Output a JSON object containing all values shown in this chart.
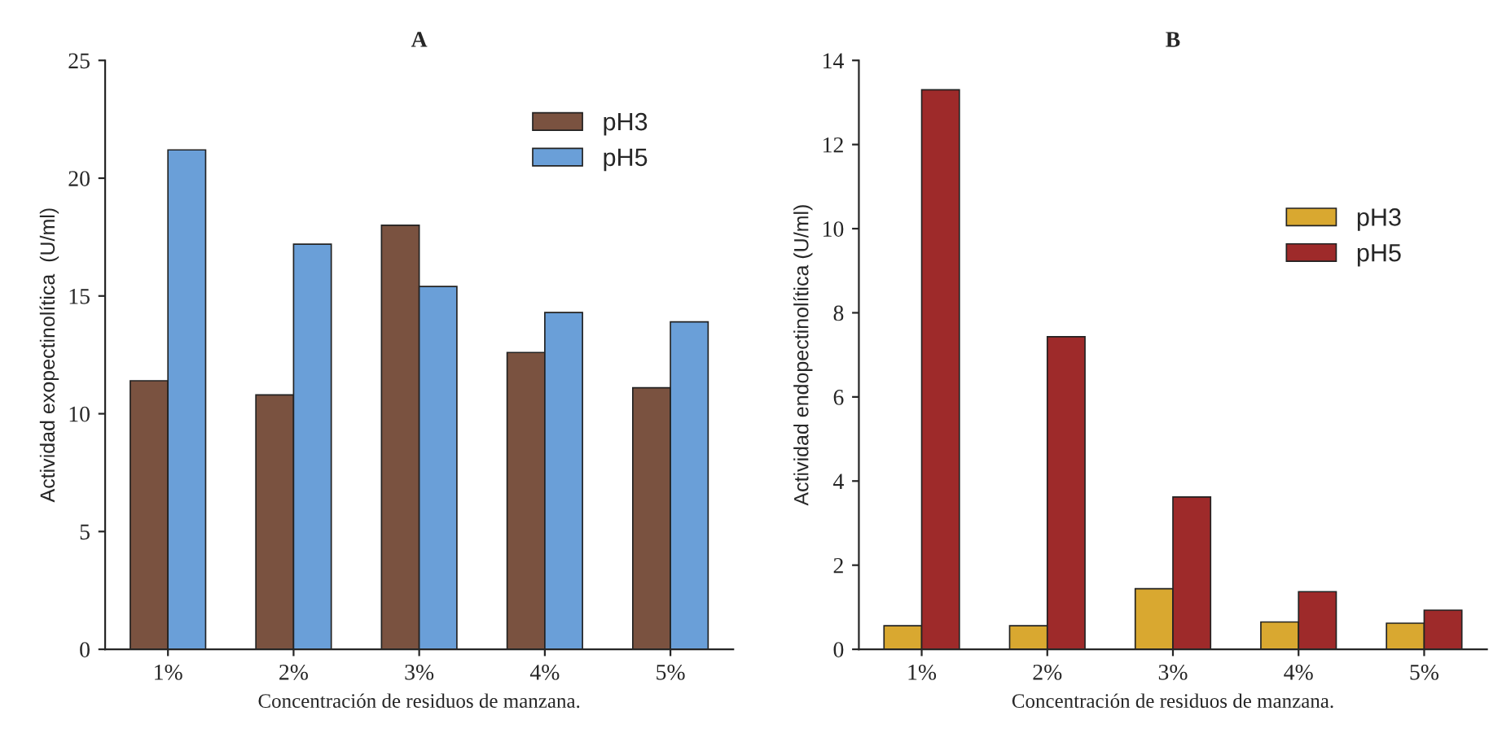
{
  "chart_data": [
    {
      "type": "bar",
      "title": "A",
      "xlabel": "Concentración de residuos de manzana.",
      "ylabel": "Actividad exopectinolítica  (U/ml)",
      "categories": [
        "1%",
        "2%",
        "3%",
        "4%",
        "5%"
      ],
      "series": [
        {
          "name": "pH3",
          "color": "#7a5240",
          "values": [
            11.4,
            10.8,
            18.0,
            12.6,
            11.1
          ]
        },
        {
          "name": "pH5",
          "color": "#6a9fd8",
          "values": [
            21.2,
            17.2,
            15.4,
            14.3,
            13.9
          ]
        }
      ],
      "ylim": [
        0,
        25
      ],
      "yticks": [
        0,
        5,
        10,
        15,
        20,
        25
      ],
      "grid": false,
      "legend": "top right"
    },
    {
      "type": "bar",
      "title": "B",
      "xlabel": "Concentración de residuos de manzana.",
      "ylabel": "Actividad endopectinolítica (U/ml)",
      "categories": [
        "1%",
        "2%",
        "3%",
        "4%",
        "5%"
      ],
      "series": [
        {
          "name": "pH3",
          "color": "#d9a830",
          "values": [
            0.56,
            0.56,
            1.44,
            0.65,
            0.62
          ]
        },
        {
          "name": "pH5",
          "color": "#9e2a2a",
          "values": [
            13.3,
            7.43,
            3.62,
            1.37,
            0.93
          ]
        }
      ],
      "ylim": [
        0,
        14
      ],
      "yticks": [
        0,
        2,
        4,
        6,
        8,
        10,
        12,
        14
      ],
      "grid": false,
      "legend": "right"
    }
  ]
}
